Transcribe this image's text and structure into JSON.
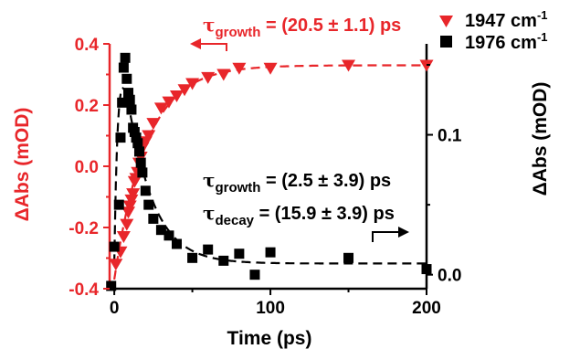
{
  "colors": {
    "red": "#e8262a",
    "black": "#000000"
  },
  "chart_data": {
    "type": "scatter",
    "xlabel": "Time (ps)",
    "ylabel_left": "ΔAbs (mOD)",
    "ylabel_right": "ΔAbs (mOD)",
    "xlim": [
      -3,
      200
    ],
    "ylim_left": [
      -0.4,
      0.4
    ],
    "ylim_right": [
      -0.01,
      0.165
    ],
    "x_ticks": [
      0,
      100,
      200
    ],
    "y_ticks_left": [
      "-0.4",
      "-0.2",
      "0.0",
      "0.2",
      "0.4"
    ],
    "y_ticks_right": [
      "0.0",
      "0.1"
    ],
    "series": [
      {
        "name": "1947 cm-1",
        "name_main": "1947 cm",
        "name_sup": "-1",
        "axis": "left",
        "marker": "triangle-down",
        "color": "#e8262a",
        "x": [
          1,
          4,
          6,
          8,
          9,
          10,
          11,
          12,
          13,
          14,
          15,
          16,
          17,
          18,
          20,
          22,
          25,
          30,
          35,
          40,
          45,
          50,
          60,
          70,
          80,
          100,
          150,
          200
        ],
        "y": [
          -0.32,
          -0.28,
          -0.23,
          -0.19,
          -0.15,
          -0.13,
          -0.11,
          -0.09,
          -0.05,
          -0.04,
          -0.02,
          0.01,
          0.03,
          0.06,
          0.08,
          0.1,
          0.14,
          0.19,
          0.21,
          0.23,
          0.25,
          0.27,
          0.29,
          0.3,
          0.32,
          0.32,
          0.33,
          0.33
        ]
      },
      {
        "name": "1976 cm-1",
        "name_main": "1976 cm",
        "name_sup": "-1",
        "axis": "right",
        "marker": "square",
        "color": "#000000",
        "x": [
          -2,
          0,
          3,
          4,
          5,
          6,
          7,
          8,
          9,
          10,
          11,
          12,
          13,
          14,
          15,
          16,
          17,
          18,
          20,
          22,
          25,
          30,
          35,
          40,
          50,
          60,
          70,
          80,
          90,
          100,
          150,
          200
        ],
        "y": [
          -0.008,
          0.02,
          0.05,
          0.098,
          0.123,
          0.148,
          0.155,
          0.14,
          0.13,
          0.125,
          0.118,
          0.105,
          0.102,
          0.098,
          0.094,
          0.088,
          0.08,
          0.073,
          0.06,
          0.05,
          0.04,
          0.032,
          0.028,
          0.022,
          0.012,
          0.018,
          0.01,
          0.015,
          0.0,
          0.016,
          0.012,
          0.004
        ]
      }
    ],
    "fits": [
      {
        "axis": "left",
        "color": "#e8262a",
        "model": "rise",
        "A": 0.33,
        "B": -0.7,
        "tau": 20.5,
        "x0": 0
      },
      {
        "axis": "right",
        "color": "#000000",
        "model": "rise-decay",
        "tau_growth": 2.5,
        "tau_decay": 15.9,
        "amplitude": 0.21,
        "offset": 0.008,
        "x0": 0
      }
    ],
    "annotations": [
      {
        "main": "τ",
        "sub": "growth",
        "rest": " = (20.5 ± 1.1) ps",
        "color": "#e8262a"
      },
      {
        "main": "τ",
        "sub": "growth",
        "rest": " = (2.5 ± 3.9) ps",
        "color": "#000000"
      },
      {
        "main": "τ",
        "sub": "decay",
        "rest": " = (15.9 ± 3.9) ps",
        "color": "#000000"
      }
    ]
  }
}
